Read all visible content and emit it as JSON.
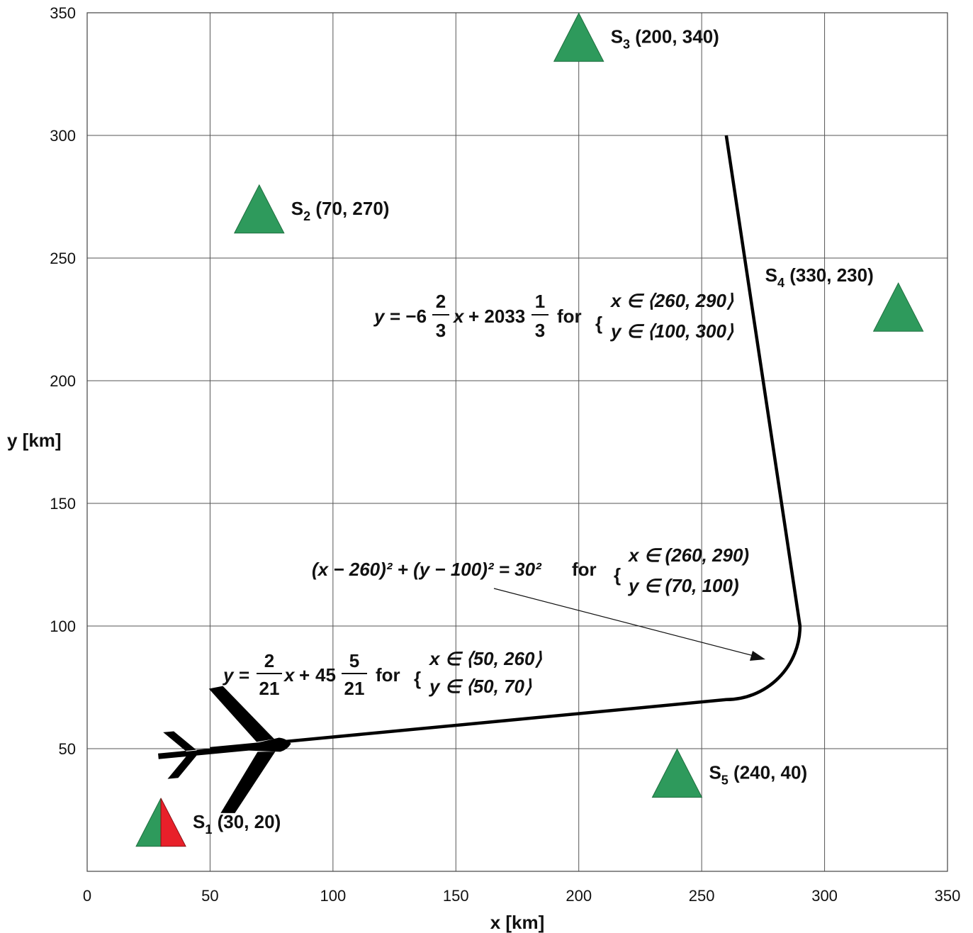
{
  "chart_data": {
    "type": "line",
    "title": "",
    "xlabel": "x [km]",
    "ylabel": "y [km]",
    "xlim": [
      0,
      350
    ],
    "ylim": [
      0,
      350
    ],
    "xticks": [
      0,
      50,
      100,
      150,
      200,
      250,
      300,
      350
    ],
    "yticks": [
      50,
      100,
      150,
      200,
      250,
      300,
      350
    ],
    "grid": true,
    "stations": [
      {
        "name": "S1",
        "sub": "1",
        "label_coords": "(30, 20)",
        "x": 30,
        "y": 20,
        "color": "#2e9a5c",
        "color2": "#e8202a"
      },
      {
        "name": "S2",
        "sub": "2",
        "label_coords": "(70, 270)",
        "x": 70,
        "y": 270,
        "color": "#2e9a5c"
      },
      {
        "name": "S3",
        "sub": "3",
        "label_coords": "(200, 340)",
        "x": 200,
        "y": 340,
        "color": "#2e9a5c"
      },
      {
        "name": "S4",
        "sub": "4",
        "label_coords": "(330, 230)",
        "x": 330,
        "y": 230,
        "color": "#2e9a5c"
      },
      {
        "name": "S5",
        "sub": "5",
        "label_coords": "(240, 40)",
        "x": 240,
        "y": 40,
        "color": "#2e9a5c"
      }
    ],
    "trajectory": {
      "segments": [
        {
          "kind": "line",
          "from": [
            50,
            50
          ],
          "to": [
            260,
            70
          ]
        },
        {
          "kind": "arc",
          "center": [
            260,
            100
          ],
          "radius": 30,
          "from": [
            260,
            70
          ],
          "to": [
            290,
            100
          ]
        },
        {
          "kind": "line",
          "from": [
            290,
            100
          ],
          "to": [
            260,
            300
          ]
        }
      ],
      "color": "#000000"
    },
    "aircraft": {
      "x": 72,
      "y": 51
    },
    "annotations": {
      "eq1": {
        "lhs": "y",
        "equals": "=",
        "num": "2",
        "den": "21",
        "x": "x",
        "plus": "+",
        "whole": "45",
        "num2": "5",
        "den2": "21",
        "for": "for",
        "cond_x": "x ∈ ⟨50, 260⟩",
        "cond_y": "y ∈ ⟨50, 70⟩"
      },
      "eq2": {
        "text": "(x − 260)² + (y − 100)² = 30²",
        "for": "for",
        "cond_x": "x ∈ (260, 290)",
        "cond_y": "y ∈ (70, 100)"
      },
      "eq3": {
        "lhs": "y",
        "equals": "= −6",
        "num": "2",
        "den": "3",
        "x": "x",
        "plus": "+ 2033",
        "num2": "1",
        "den2": "3",
        "for": "for",
        "cond_x": "x ∈ ⟨260, 290⟩",
        "cond_y": "y ∈ ⟨100, 300⟩"
      }
    }
  }
}
